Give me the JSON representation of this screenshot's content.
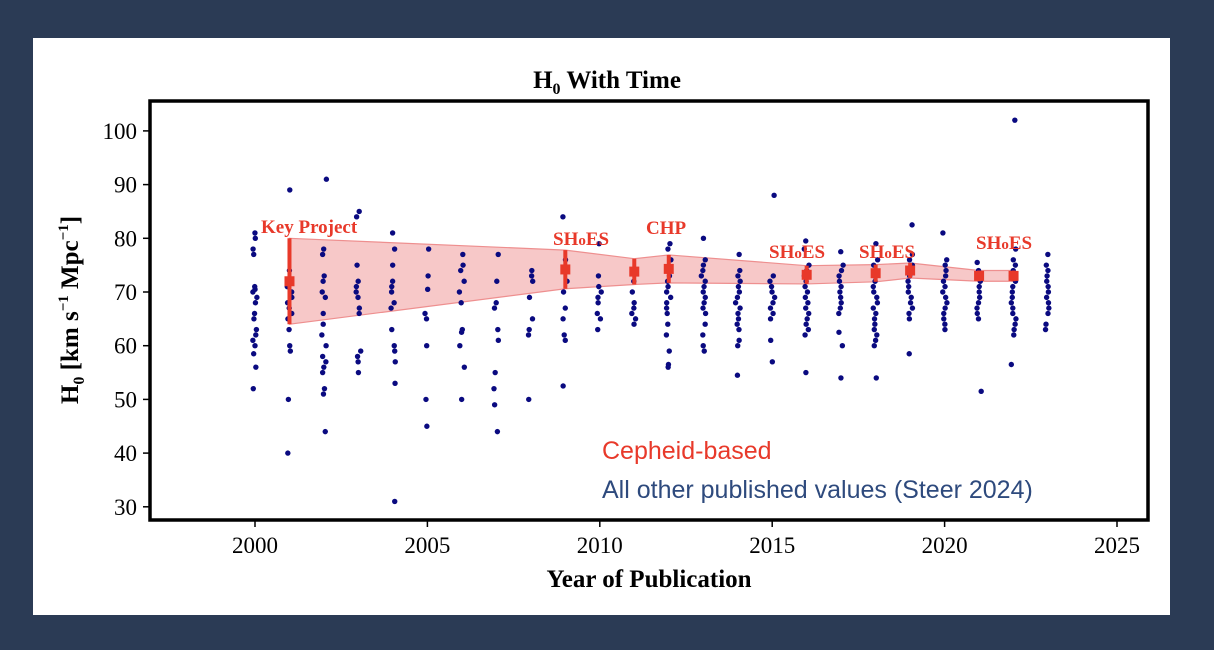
{
  "chart_data": {
    "type": "scatter",
    "title": "H0 With Time",
    "xlabel": "Year of Publication",
    "ylabel": "H0 [km s^-1 Mpc^-1]",
    "xlim": [
      1997,
      2026
    ],
    "ylim": [
      27.5,
      105.5
    ],
    "xticks": [
      2000,
      2005,
      2010,
      2015,
      2020,
      2025
    ],
    "yticks": [
      30,
      40,
      50,
      60,
      70,
      80,
      90,
      100
    ],
    "grid": false,
    "legend_position": "lower right (text annotations)",
    "legend": [
      {
        "label": "Cepheid-based",
        "color": "#e8392a"
      },
      {
        "label": "All other published values (Steer 2024)",
        "color": "#2e4a7d"
      }
    ],
    "series": [
      {
        "name": "Cepheid-based",
        "color": "#e8392a",
        "points": [
          {
            "x": 2001,
            "y": 72.0,
            "err": 8.0,
            "label": "Key Project"
          },
          {
            "x": 2009,
            "y": 74.2,
            "err": 3.6,
            "label": "SHoES"
          },
          {
            "x": 2011,
            "y": 73.8,
            "err": 2.4,
            "label": ""
          },
          {
            "x": 2012,
            "y": 74.3,
            "err": 2.6,
            "label": "CHP"
          },
          {
            "x": 2016,
            "y": 73.2,
            "err": 1.7,
            "label": "SHoES"
          },
          {
            "x": 2018,
            "y": 73.5,
            "err": 1.6,
            "label": "SHoES"
          },
          {
            "x": 2019,
            "y": 74.0,
            "err": 1.4,
            "label": ""
          },
          {
            "x": 2021,
            "y": 73.0,
            "err": 1.0,
            "label": ""
          },
          {
            "x": 2022,
            "y": 73.0,
            "err": 1.0,
            "label": "SHoES"
          }
        ],
        "band": {
          "x": [
            2001,
            2009,
            2011,
            2012,
            2016,
            2018,
            2019,
            2021,
            2022
          ],
          "upper": [
            80.0,
            77.8,
            76.2,
            76.9,
            74.9,
            75.1,
            75.4,
            74.0,
            74.0
          ],
          "lower": [
            64.0,
            70.6,
            71.4,
            71.7,
            71.5,
            71.9,
            72.6,
            72.0,
            72.0
          ],
          "color": "#f4b6b6"
        }
      },
      {
        "name": "All other published values (Steer 2024)",
        "color": "#0a0a80",
        "points_by_year": {
          "2000": [
            81,
            80,
            78,
            77,
            71,
            70.5,
            70,
            69,
            68,
            66,
            65,
            63,
            62,
            61,
            60,
            58.5,
            56,
            52
          ],
          "2001": [
            89,
            74,
            72,
            71,
            70,
            69,
            68,
            67,
            66,
            65,
            63,
            60,
            59,
            50,
            40
          ],
          "2002": [
            91,
            78,
            77,
            73,
            72,
            70,
            69,
            66,
            64,
            62,
            60,
            58,
            57,
            56,
            55,
            52,
            51,
            44
          ],
          "2003": [
            85,
            84,
            75,
            72,
            71,
            70,
            69,
            67,
            66,
            59,
            58,
            57,
            55
          ],
          "2004": [
            81,
            78,
            75,
            72,
            71,
            70,
            68,
            67,
            63,
            60,
            59,
            57,
            53,
            31
          ],
          "2005": [
            78,
            73,
            70.5,
            66,
            65,
            60,
            50,
            45
          ],
          "2006": [
            77,
            75,
            74,
            72,
            70,
            68,
            63,
            62.5,
            60,
            56,
            50
          ],
          "2007": [
            77,
            72,
            68,
            67,
            63,
            61,
            55,
            52,
            49,
            44
          ],
          "2008": [
            74,
            73,
            72,
            69,
            65,
            63,
            62,
            50
          ],
          "2009": [
            84,
            76,
            74,
            72,
            70,
            67,
            65,
            62,
            61,
            52.5
          ],
          "2010": [
            79,
            73,
            71,
            70,
            69,
            68,
            66,
            65,
            63
          ],
          "2011": [
            72,
            70,
            68,
            67,
            66,
            65,
            64
          ],
          "2012": [
            79,
            78,
            76,
            74,
            73,
            72,
            71,
            70,
            69,
            68,
            67,
            66,
            64,
            62,
            59,
            56.5,
            56
          ],
          "2013": [
            80,
            76,
            75,
            74,
            73,
            72,
            71,
            70,
            69,
            68,
            67,
            66,
            64,
            62,
            60,
            59
          ],
          "2014": [
            77,
            74,
            73,
            72,
            71,
            70,
            69,
            68,
            67,
            66,
            65,
            64,
            63,
            61,
            60,
            54.5
          ],
          "2015": [
            88,
            73,
            72,
            71,
            70,
            69,
            68,
            67,
            66,
            65,
            61,
            57
          ],
          "2016": [
            79.5,
            78,
            75,
            74,
            73,
            72,
            71,
            70,
            69,
            68,
            67,
            66,
            65,
            64,
            63,
            62,
            55
          ],
          "2017": [
            77.5,
            75,
            74,
            73,
            72,
            71,
            70,
            69,
            68,
            67,
            66,
            62.5,
            60,
            54
          ],
          "2018": [
            79,
            76,
            75,
            74,
            73,
            72,
            71,
            70,
            69,
            68,
            67,
            66,
            65,
            64,
            63,
            62,
            61,
            60,
            54
          ],
          "2019": [
            82.5,
            77,
            76,
            75,
            74,
            73,
            72,
            71,
            70,
            69,
            68,
            67,
            66,
            65,
            58.5
          ],
          "2020": [
            81,
            76,
            75,
            74,
            73,
            72,
            71,
            70,
            69,
            68,
            67,
            66,
            65,
            64,
            63
          ],
          "2021": [
            75.5,
            74,
            73,
            72,
            71,
            70,
            69,
            68,
            67,
            66,
            65,
            51.5
          ],
          "2022": [
            102,
            78,
            76,
            75,
            74,
            73,
            72,
            71,
            70,
            69,
            68,
            67,
            66,
            65,
            64,
            63,
            62,
            56.5
          ],
          "2023": [
            77,
            75,
            74,
            73,
            72,
            71,
            70,
            69,
            68,
            67,
            66,
            64,
            63
          ]
        }
      }
    ]
  },
  "header": {
    "title_main": "H",
    "title_sub": "0",
    "title_rest": " With Time"
  },
  "axes": {
    "x_title": "Year of Publication",
    "y_title_main": "H",
    "y_title_sub": "0",
    "y_title_rest": " [km s",
    "y_title_sup1": "−1",
    "y_title_mid": " Mpc",
    "y_title_sup2": "−1",
    "y_title_end": "]"
  },
  "legend": {
    "cepheid_label": "Cepheid-based",
    "other_label": "All other published values (Steer 2024)"
  },
  "colors": {
    "background": "#2b3b55",
    "cepheid": "#e8392a",
    "band": "#f4b6b6",
    "points": "#0a0a80",
    "legend_other": "#2e4a7d"
  }
}
